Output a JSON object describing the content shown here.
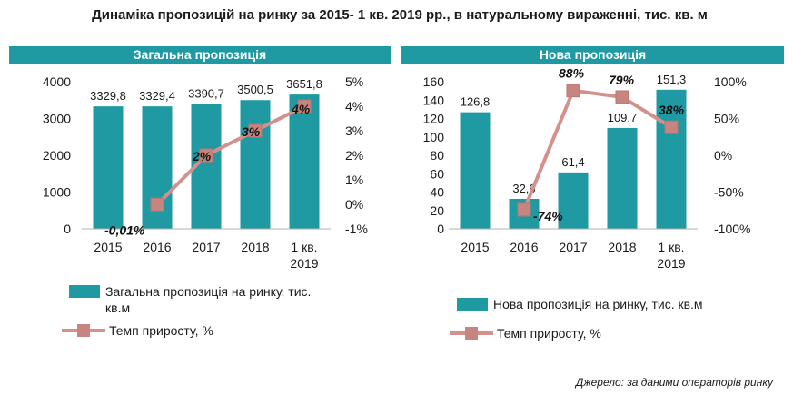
{
  "title": "Динаміка пропозицій на ринку за 2015- 1 кв. 2019 рр., в натуральному вираженні, тис. кв. м",
  "source": "Джерело: за даними операторів ринку",
  "colors": {
    "bar": "#1f9aa2",
    "line": "#d4918c",
    "marker": "#c8847f",
    "banner": "#1f9aa2"
  },
  "chart_data": [
    {
      "type": "bar",
      "title": "Загальна пропозиція",
      "categories": [
        "2015",
        "2016",
        "2017",
        "2018",
        "1 кв.|2019"
      ],
      "series": [
        {
          "name": "Загальна пропозиція на ринку, тис. кв.м",
          "type": "bar",
          "axis": "left",
          "values": [
            3329.8,
            3329.4,
            3390.7,
            3500.5,
            3651.8
          ],
          "labels": [
            "3329,8",
            "3329,4",
            "3390,7",
            "3500,5",
            "3651,8"
          ]
        },
        {
          "name": "Темп приросту, %",
          "type": "line",
          "axis": "right",
          "values": [
            null,
            -0.01,
            2,
            3,
            4
          ],
          "labels": [
            "",
            "-0,01%",
            "2%",
            "3%",
            "4%"
          ]
        }
      ],
      "ylim": [
        0,
        4000
      ],
      "yticks": [
        0,
        1000,
        2000,
        3000,
        4000
      ],
      "y2lim": [
        -1,
        5
      ],
      "y2ticks": [
        5,
        4,
        3,
        2,
        1,
        0,
        -1
      ],
      "y2ticklabels": [
        "5%",
        "4%",
        "3%",
        "2%",
        "1%",
        "0%",
        "-1%"
      ],
      "legend": "bottom"
    },
    {
      "type": "bar",
      "title": "Нова пропозиція",
      "categories": [
        "2015",
        "2016",
        "2017",
        "2018",
        "1 кв.|2019"
      ],
      "series": [
        {
          "name": "Нова пропозиція на ринку, тис. кв.м",
          "type": "bar",
          "axis": "left",
          "values": [
            126.8,
            32.6,
            61.4,
            109.7,
            151.3
          ],
          "labels": [
            "126,8",
            "32,6",
            "61,4",
            "109,7",
            "151,3"
          ]
        },
        {
          "name": "Темп приросту, %",
          "type": "line",
          "axis": "right",
          "values": [
            null,
            -74,
            88,
            79,
            38
          ],
          "labels": [
            "",
            "-74%",
            "88%",
            "79%",
            "38%"
          ]
        }
      ],
      "ylim": [
        0,
        160
      ],
      "yticks": [
        0,
        20,
        40,
        60,
        80,
        100,
        120,
        140,
        160
      ],
      "y2lim": [
        -100,
        100
      ],
      "y2ticks": [
        100,
        50,
        0,
        -50,
        -100
      ],
      "y2ticklabels": [
        "100%",
        "50%",
        "0%",
        "-50%",
        "-100%"
      ],
      "legend": "bottom"
    }
  ]
}
